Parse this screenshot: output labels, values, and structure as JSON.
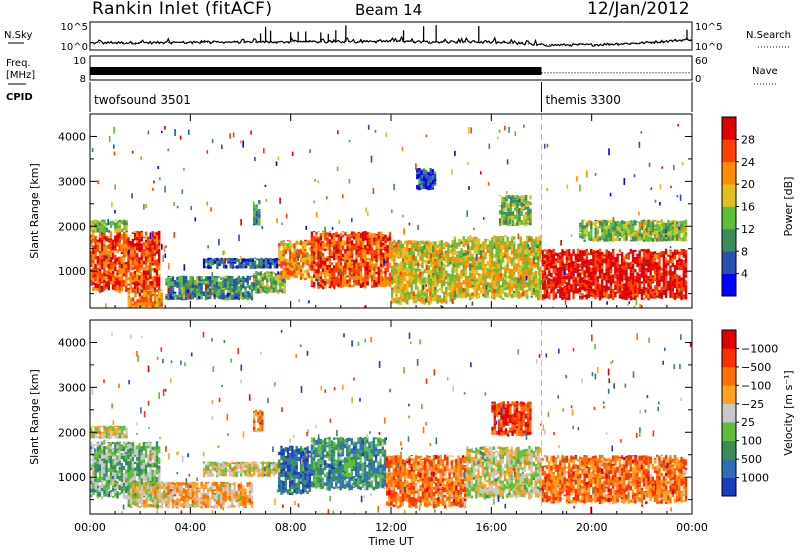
{
  "header": {
    "station": "Rankin Inlet (fitACF)",
    "beam": "Beam 14",
    "date": "12/Jan/2012"
  },
  "chart_data": [
    {
      "type": "line",
      "panel": "noise",
      "left_label": "N.Sky",
      "right_label": "N.Search",
      "left_ticks": [
        "10^5",
        "10^0"
      ],
      "right_ticks": [
        "10^5",
        "10^0"
      ],
      "baseline_profile": {
        "x": [
          0,
          4,
          8,
          12,
          16,
          18,
          20,
          22,
          24
        ],
        "y": [
          0.35,
          0.38,
          0.42,
          0.45,
          0.4,
          0.2,
          0.22,
          0.35,
          0.6
        ]
      },
      "spikes_hours": [
        6.8,
        7.0,
        7.2,
        8.0,
        8.3,
        8.6,
        9.2,
        9.5,
        9.8,
        10.2,
        12.5,
        13.3,
        13.8,
        15.5,
        23.8
      ]
    },
    {
      "type": "line",
      "panel": "frequency",
      "left_label_1": "Freq.",
      "left_label_2": "[MHz]",
      "right_label": "Nave",
      "left_ticks": [
        "10",
        "8"
      ],
      "right_ticks": [
        "60",
        "0"
      ],
      "freq_band": {
        "x_start": 0,
        "x_end": 18
      },
      "nave_level": 0.55
    },
    {
      "type": "table",
      "panel": "cpid",
      "label": "CPID",
      "modes": [
        {
          "name": "twofsound 3501",
          "start_hour": 0
        },
        {
          "name": "themis 3300",
          "start_hour": 18
        }
      ]
    },
    {
      "type": "heatmap",
      "panel": "power",
      "ylabel": "Slant Range [km]",
      "ylim": [
        180,
        4500
      ],
      "yticks": [
        1000,
        2000,
        3000,
        4000
      ],
      "colorbar_label": "Power [dB]",
      "colorbar_ticks": [
        "4",
        "8",
        "12",
        "16",
        "20",
        "24",
        "28"
      ],
      "colors": [
        "#0000ff",
        "#2a4fb0",
        "#3a8c5a",
        "#5cbf3a",
        "#e0c020",
        "#ff8c00",
        "#ff4000",
        "#e00000"
      ],
      "blobs": [
        {
          "x0": 0.0,
          "x1": 2.8,
          "y0": 500,
          "y1": 1900,
          "lvl": 6
        },
        {
          "x0": 1.5,
          "x1": 2.9,
          "y0": 180,
          "y1": 600,
          "lvl": 5
        },
        {
          "x0": 0.0,
          "x1": 1.5,
          "y0": 1850,
          "y1": 2150,
          "lvl": 3
        },
        {
          "x0": 3.0,
          "x1": 6.5,
          "y0": 350,
          "y1": 900,
          "lvl": 2
        },
        {
          "x0": 4.5,
          "x1": 7.5,
          "y0": 1050,
          "y1": 1300,
          "lvl": 1
        },
        {
          "x0": 6.5,
          "x1": 7.8,
          "y0": 500,
          "y1": 1000,
          "lvl": 3
        },
        {
          "x0": 7.5,
          "x1": 8.8,
          "y0": 800,
          "y1": 1700,
          "lvl": 5
        },
        {
          "x0": 6.5,
          "x1": 6.8,
          "y0": 2000,
          "y1": 2600,
          "lvl": 2
        },
        {
          "x0": 8.8,
          "x1": 12.0,
          "y0": 600,
          "y1": 1900,
          "lvl": 6
        },
        {
          "x0": 12.0,
          "x1": 14.5,
          "y0": 250,
          "y1": 1700,
          "lvl": 4
        },
        {
          "x0": 13.0,
          "x1": 13.8,
          "y0": 2800,
          "y1": 3300,
          "lvl": 1
        },
        {
          "x0": 14.5,
          "x1": 18.0,
          "y0": 350,
          "y1": 1800,
          "lvl": 4
        },
        {
          "x0": 16.3,
          "x1": 17.6,
          "y0": 2000,
          "y1": 2700,
          "lvl": 3
        },
        {
          "x0": 18.0,
          "x1": 23.8,
          "y0": 350,
          "y1": 1500,
          "lvl": 7
        },
        {
          "x0": 19.5,
          "x1": 23.8,
          "y0": 1650,
          "y1": 2150,
          "lvl": 3
        }
      ]
    },
    {
      "type": "heatmap",
      "panel": "velocity",
      "ylabel": "Slant Range [km]",
      "ylim": [
        180,
        4500
      ],
      "yticks": [
        1000,
        2000,
        3000,
        4000
      ],
      "colorbar_label": "Velocity [m s⁻¹]",
      "colorbar_ticks": [
        "1000",
        "500",
        "100",
        "25",
        "−25",
        "−100",
        "−500",
        "−1000"
      ],
      "colors": [
        "#1a3cc0",
        "#2a6fb8",
        "#3a8c5a",
        "#5cbf3a",
        "#c8c8c8",
        "#ffa020",
        "#ff7000",
        "#ff3000",
        "#e00000"
      ],
      "blobs": [
        {
          "x0": 0.0,
          "x1": 2.8,
          "y0": 500,
          "y1": 1800,
          "lvl": 3
        },
        {
          "x0": 0.0,
          "x1": 1.5,
          "y0": 1850,
          "y1": 2150,
          "lvl": 4
        },
        {
          "x0": 1.5,
          "x1": 3.0,
          "y0": 300,
          "y1": 900,
          "lvl": 4
        },
        {
          "x0": 3.0,
          "x1": 6.5,
          "y0": 300,
          "y1": 900,
          "lvl": 5
        },
        {
          "x0": 4.5,
          "x1": 7.8,
          "y0": 1000,
          "y1": 1350,
          "lvl": 4
        },
        {
          "x0": 7.5,
          "x1": 8.8,
          "y0": 600,
          "y1": 1700,
          "lvl": 1
        },
        {
          "x0": 6.5,
          "x1": 6.9,
          "y0": 2000,
          "y1": 2500,
          "lvl": 6
        },
        {
          "x0": 8.8,
          "x1": 11.8,
          "y0": 700,
          "y1": 1900,
          "lvl": 2
        },
        {
          "x0": 11.8,
          "x1": 15.0,
          "y0": 300,
          "y1": 1500,
          "lvl": 6
        },
        {
          "x0": 15.0,
          "x1": 18.0,
          "y0": 500,
          "y1": 1700,
          "lvl": 4
        },
        {
          "x0": 16.0,
          "x1": 17.6,
          "y0": 1900,
          "y1": 2700,
          "lvl": 7
        },
        {
          "x0": 18.0,
          "x1": 23.8,
          "y0": 400,
          "y1": 1500,
          "lvl": 6
        }
      ]
    }
  ],
  "xaxis": {
    "label": "Time UT",
    "ticks": [
      "00:00",
      "04:00",
      "08:00",
      "12:00",
      "16:00",
      "20:00",
      "00:00"
    ],
    "range_hours": [
      0,
      24
    ],
    "mode_change_hour": 18
  }
}
